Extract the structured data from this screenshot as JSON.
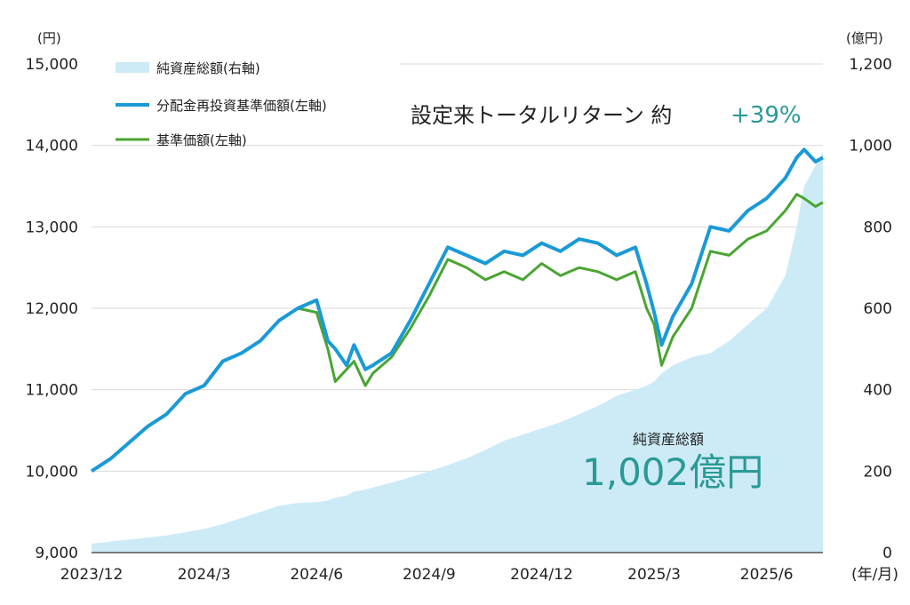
{
  "chart_data": {
    "type": "line",
    "title": "",
    "x_tick_labels": [
      "2023/12",
      "2024/3",
      "2024/6",
      "2024/9",
      "2024/12",
      "2025/3",
      "2025/6"
    ],
    "x_unit": "(年/月)",
    "left_axis": {
      "unit": "(円)",
      "ylim": [
        9000,
        15000
      ],
      "tick_labels": [
        "9,000",
        "10,000",
        "11,000",
        "12,000",
        "13,000",
        "14,000",
        "15,000"
      ]
    },
    "right_axis": {
      "unit": "(億円)",
      "ylim": [
        0,
        1200
      ],
      "tick_labels": [
        "0",
        "200",
        "400",
        "600",
        "800",
        "1,000",
        "1,200"
      ]
    },
    "legend": [
      {
        "name": "純資産総額(右軸)",
        "color": "#cdebf7",
        "kind": "area"
      },
      {
        "name": "分配金再投資基準価額(左軸)",
        "color": "#1a9ad6",
        "kind": "line"
      },
      {
        "name": "基準価額(左軸)",
        "color": "#4aa532",
        "kind": "line"
      }
    ],
    "x_months": [
      0,
      0.5,
      1,
      1.5,
      2,
      2.5,
      3,
      3.5,
      4,
      4.5,
      5,
      5.5,
      6,
      6.3,
      6.5,
      6.8,
      7,
      7.3,
      7.5,
      8,
      8.5,
      9,
      9.5,
      10,
      10.5,
      11,
      11.5,
      12,
      12.5,
      13,
      13.5,
      14,
      14.5,
      14.8,
      15,
      15.2,
      15.5,
      16,
      16.5,
      17,
      17.5,
      18,
      18.5,
      18.8,
      19,
      19.3,
      19.5
    ],
    "series": [
      {
        "name": "分配金再投資基準価額(左軸)",
        "axis": "left",
        "values": [
          10000,
          10150,
          10350,
          10550,
          10700,
          10950,
          11050,
          11350,
          11450,
          11600,
          11850,
          12000,
          12100,
          11600,
          11500,
          11300,
          11550,
          11250,
          11300,
          11450,
          11850,
          12300,
          12750,
          12650,
          12550,
          12700,
          12650,
          12800,
          12700,
          12850,
          12800,
          12650,
          12750,
          12300,
          11950,
          11550,
          11900,
          12300,
          13000,
          12950,
          13200,
          13350,
          13600,
          13850,
          13950,
          13800,
          13850
        ]
      },
      {
        "name": "基準価額(左軸)",
        "axis": "left",
        "values": [
          10000,
          10150,
          10350,
          10550,
          10700,
          10950,
          11050,
          11350,
          11450,
          11600,
          11850,
          12000,
          11950,
          11500,
          11100,
          11250,
          11350,
          11050,
          11200,
          11400,
          11750,
          12150,
          12600,
          12500,
          12350,
          12450,
          12350,
          12550,
          12400,
          12500,
          12450,
          12350,
          12450,
          12000,
          11800,
          11300,
          11650,
          12000,
          12700,
          12650,
          12850,
          12950,
          13200,
          13400,
          13350,
          13250,
          13300
        ]
      },
      {
        "name": "純資産総額(右軸)",
        "axis": "right",
        "values": [
          22,
          27,
          32,
          37,
          42,
          50,
          58,
          70,
          85,
          100,
          115,
          122,
          124,
          128,
          135,
          140,
          150,
          155,
          160,
          172,
          185,
          200,
          215,
          232,
          252,
          275,
          290,
          305,
          320,
          340,
          360,
          385,
          400,
          410,
          420,
          440,
          460,
          480,
          490,
          520,
          560,
          600,
          680,
          800,
          900,
          950,
          985
        ]
      }
    ]
  },
  "headline": {
    "text": "設定来トータルリターン 約",
    "accent": "+39%"
  },
  "annotation": {
    "label": "純資産総額",
    "value": "1,002億円"
  },
  "colors": {
    "grid": "#d9d9d9",
    "axis": "#333333"
  }
}
